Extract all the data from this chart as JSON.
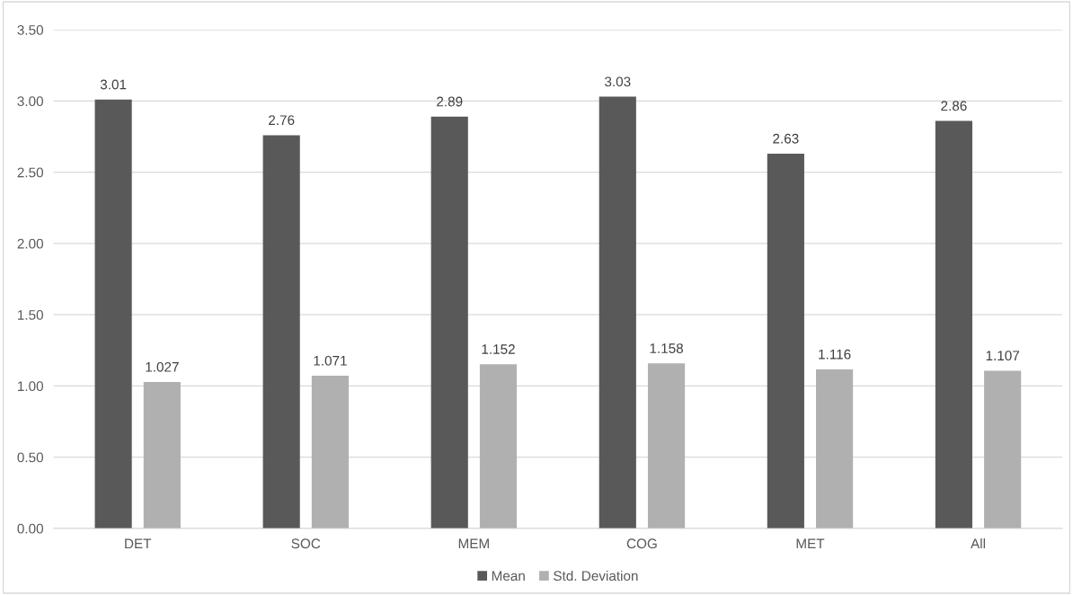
{
  "chart_data": {
    "type": "bar",
    "categories": [
      "DET",
      "SOC",
      "MEM",
      "COG",
      "MET",
      "All"
    ],
    "series": [
      {
        "name": "Mean",
        "color": "#595959",
        "values": [
          3.01,
          2.76,
          2.89,
          3.03,
          2.63,
          2.86
        ]
      },
      {
        "name": "Std. Deviation",
        "color": "#b0b0b0",
        "values": [
          1.027,
          1.071,
          1.152,
          1.158,
          1.116,
          1.107
        ]
      }
    ],
    "ylim": [
      0,
      3.5
    ],
    "yticks": [
      {
        "value": 0,
        "label": "0.00"
      },
      {
        "value": 0.5,
        "label": "0.50"
      },
      {
        "value": 1,
        "label": "1.00"
      },
      {
        "value": 1.5,
        "label": "1.50"
      },
      {
        "value": 2,
        "label": "2.00"
      },
      {
        "value": 2.5,
        "label": "2.50"
      },
      {
        "value": 3,
        "label": "3.00"
      },
      {
        "value": 3.5,
        "label": "3.50"
      }
    ],
    "grid": "y",
    "legend": "bottom",
    "data_labels": true
  }
}
